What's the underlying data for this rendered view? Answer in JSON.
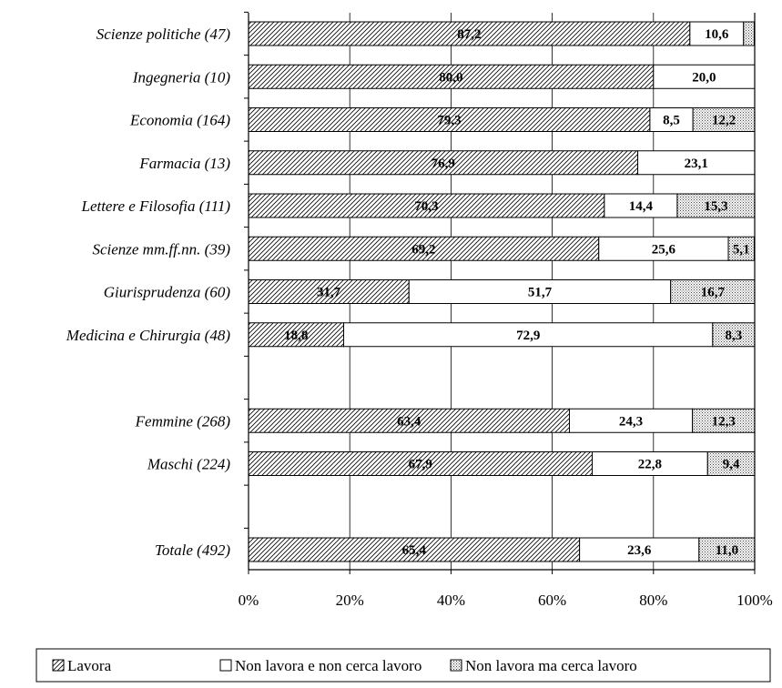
{
  "chart_data": {
    "type": "bar",
    "orientation": "horizontal",
    "stacked": "percent",
    "categories": [
      "Scienze politiche (47)",
      "Ingegneria (10)",
      "Economia (164)",
      "Farmacia (13)",
      "Lettere e Filosofia (111)",
      "Scienze mm.ff.nn. (39)",
      "Giurisprudenza (60)",
      "Medicina e Chirurgia (48)",
      "",
      "Femmine (268)",
      "Maschi (224)",
      "",
      "Totale (492)"
    ],
    "series": [
      {
        "name": "Lavora",
        "pattern": "diagonal-hatch",
        "values": [
          87.2,
          80.0,
          79.3,
          76.9,
          70.3,
          69.2,
          31.7,
          18.8,
          null,
          63.4,
          67.9,
          null,
          65.4
        ],
        "labels": [
          "87,2",
          "80,0",
          "79,3",
          "76,9",
          "70,3",
          "69,2",
          "31,7",
          "18,8",
          null,
          "63,4",
          "67,9",
          null,
          "65,4"
        ]
      },
      {
        "name": "Non lavora e non cerca lavoro",
        "pattern": "none",
        "values": [
          10.6,
          20.0,
          8.5,
          23.1,
          14.4,
          25.6,
          51.7,
          72.9,
          null,
          24.3,
          22.8,
          null,
          23.6
        ],
        "labels": [
          "10,6",
          "20,0",
          "8,5",
          "23,1",
          "14,4",
          "25,6",
          "51,7",
          "72,9",
          null,
          "24,3",
          "22,8",
          null,
          "23,6"
        ]
      },
      {
        "name": "Non lavora ma cerca lavoro",
        "pattern": "dots",
        "values": [
          2.1,
          0,
          12.2,
          0,
          15.3,
          5.1,
          16.7,
          8.3,
          null,
          12.3,
          9.4,
          null,
          11.0
        ],
        "labels": [
          null,
          null,
          "12,2",
          null,
          "15,3",
          "5,1",
          "16,7",
          "8,3",
          null,
          "12,3",
          "9,4",
          null,
          "11,0"
        ]
      }
    ],
    "xlim": [
      0,
      100
    ],
    "x_ticks": [
      "0%",
      "20%",
      "40%",
      "60%",
      "80%",
      "100%"
    ],
    "grid": "vertical",
    "legend_position": "bottom"
  }
}
